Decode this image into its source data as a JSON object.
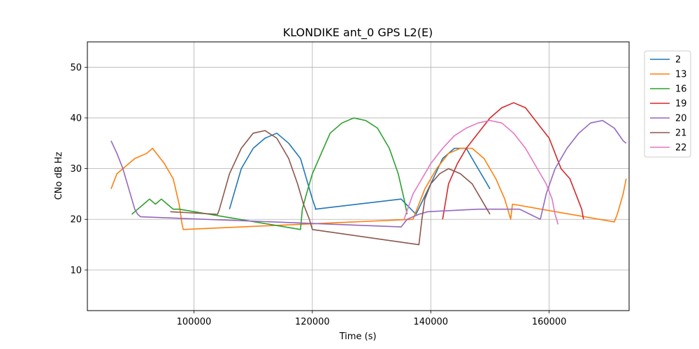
{
  "chart_data": {
    "type": "line",
    "title": "KLONDIKE ant_0 GPS L2(E)",
    "xlabel": "Time (s)",
    "ylabel": "CNo dB Hz",
    "xlim": [
      82000,
      173500
    ],
    "ylim": [
      2,
      55
    ],
    "xticks": [
      100000,
      120000,
      140000,
      160000
    ],
    "yticks": [
      10,
      20,
      30,
      40,
      50
    ],
    "grid": true,
    "legend_position": "outside-right-top",
    "series": [
      {
        "name": "2",
        "color": "#1f77b4",
        "x": [
          106000,
          108000,
          110000,
          112000,
          114000,
          116000,
          118000,
          119000,
          120000,
          120600,
          120500,
          135000,
          137500,
          140000,
          142000,
          144000,
          146000,
          147000,
          148000,
          149000,
          150000
        ],
        "y": [
          22,
          30,
          34,
          36,
          37,
          35,
          32,
          28,
          24,
          22,
          22,
          24,
          21,
          27,
          32,
          34,
          34,
          32,
          30,
          28,
          26
        ]
      },
      {
        "name": "13",
        "color": "#ff7f0e",
        "x": [
          86000,
          87000,
          88000,
          90000,
          92000,
          93000,
          95000,
          96500,
          97500,
          98000,
          98200,
          137000,
          139000,
          141000,
          143000,
          145000,
          147000,
          149000,
          151000,
          152500,
          153500,
          153800,
          171000,
          171500,
          172500,
          173000
        ],
        "y": [
          26,
          29,
          30,
          32,
          33,
          34,
          31,
          28,
          23,
          19,
          18,
          20,
          26,
          30,
          33,
          34,
          34,
          32,
          28,
          24,
          20,
          23,
          19.5,
          21,
          25,
          28
        ]
      },
      {
        "name": "16",
        "color": "#2ca02c",
        "x": [
          89500,
          90500,
          91500,
          92500,
          93500,
          94500,
          95500,
          96500,
          97500,
          118000,
          118300,
          119000,
          120000,
          121500,
          123000,
          125000,
          127000,
          129000,
          131000,
          133000,
          134500,
          135500,
          136000
        ],
        "y": [
          21,
          22,
          23,
          24,
          23,
          24,
          23,
          22,
          22,
          18,
          22,
          25,
          29,
          33,
          37,
          39,
          40,
          39.5,
          38,
          34,
          29,
          24,
          21
        ]
      },
      {
        "name": "19",
        "color": "#d62728",
        "x": [
          142000,
          143000,
          144500,
          146000,
          148000,
          150000,
          152000,
          154000,
          156000,
          158000,
          160000,
          162000,
          163500,
          164500,
          165500,
          165800
        ],
        "y": [
          20,
          27,
          31,
          34,
          37,
          40,
          42,
          43,
          42,
          39,
          36,
          30,
          28,
          25,
          22,
          20
        ]
      },
      {
        "name": "20",
        "color": "#9467bd",
        "x": [
          86000,
          87000,
          88000,
          89000,
          90000,
          90500,
          91000,
          135000,
          136000,
          138000,
          139500,
          148000,
          155000,
          158500,
          159500,
          161000,
          163000,
          165000,
          167000,
          169000,
          171000,
          172500,
          173000
        ],
        "y": [
          35.5,
          33,
          30,
          26,
          22,
          21,
          20.5,
          18.5,
          20,
          21,
          21.5,
          22,
          22,
          20,
          25,
          30,
          34,
          37,
          39,
          39.5,
          38,
          35.5,
          35
        ]
      },
      {
        "name": "21",
        "color": "#8c564b",
        "x": [
          96000,
          104000,
          104300,
          106000,
          108000,
          110000,
          112000,
          114000,
          116000,
          117500,
          118500,
          119500,
          120000,
          138000,
          138500,
          139000,
          140000,
          141500,
          143000,
          145000,
          147000,
          148500,
          149500,
          150000
        ],
        "y": [
          21.5,
          21,
          22,
          29,
          34,
          37,
          37.5,
          36,
          32,
          27,
          23,
          20,
          18,
          15,
          20,
          24,
          27,
          29,
          30,
          29,
          27,
          24,
          22,
          21
        ]
      },
      {
        "name": "22",
        "color": "#e377c2",
        "x": [
          135500,
          137000,
          138500,
          140000,
          142000,
          144000,
          146000,
          148000,
          150000,
          152000,
          154000,
          156000,
          158000,
          159500,
          160500,
          161000,
          161500
        ],
        "y": [
          20,
          25,
          28,
          31,
          34,
          36.5,
          38,
          39,
          39.5,
          39,
          37,
          34,
          30,
          27,
          24,
          21,
          19
        ]
      }
    ]
  }
}
